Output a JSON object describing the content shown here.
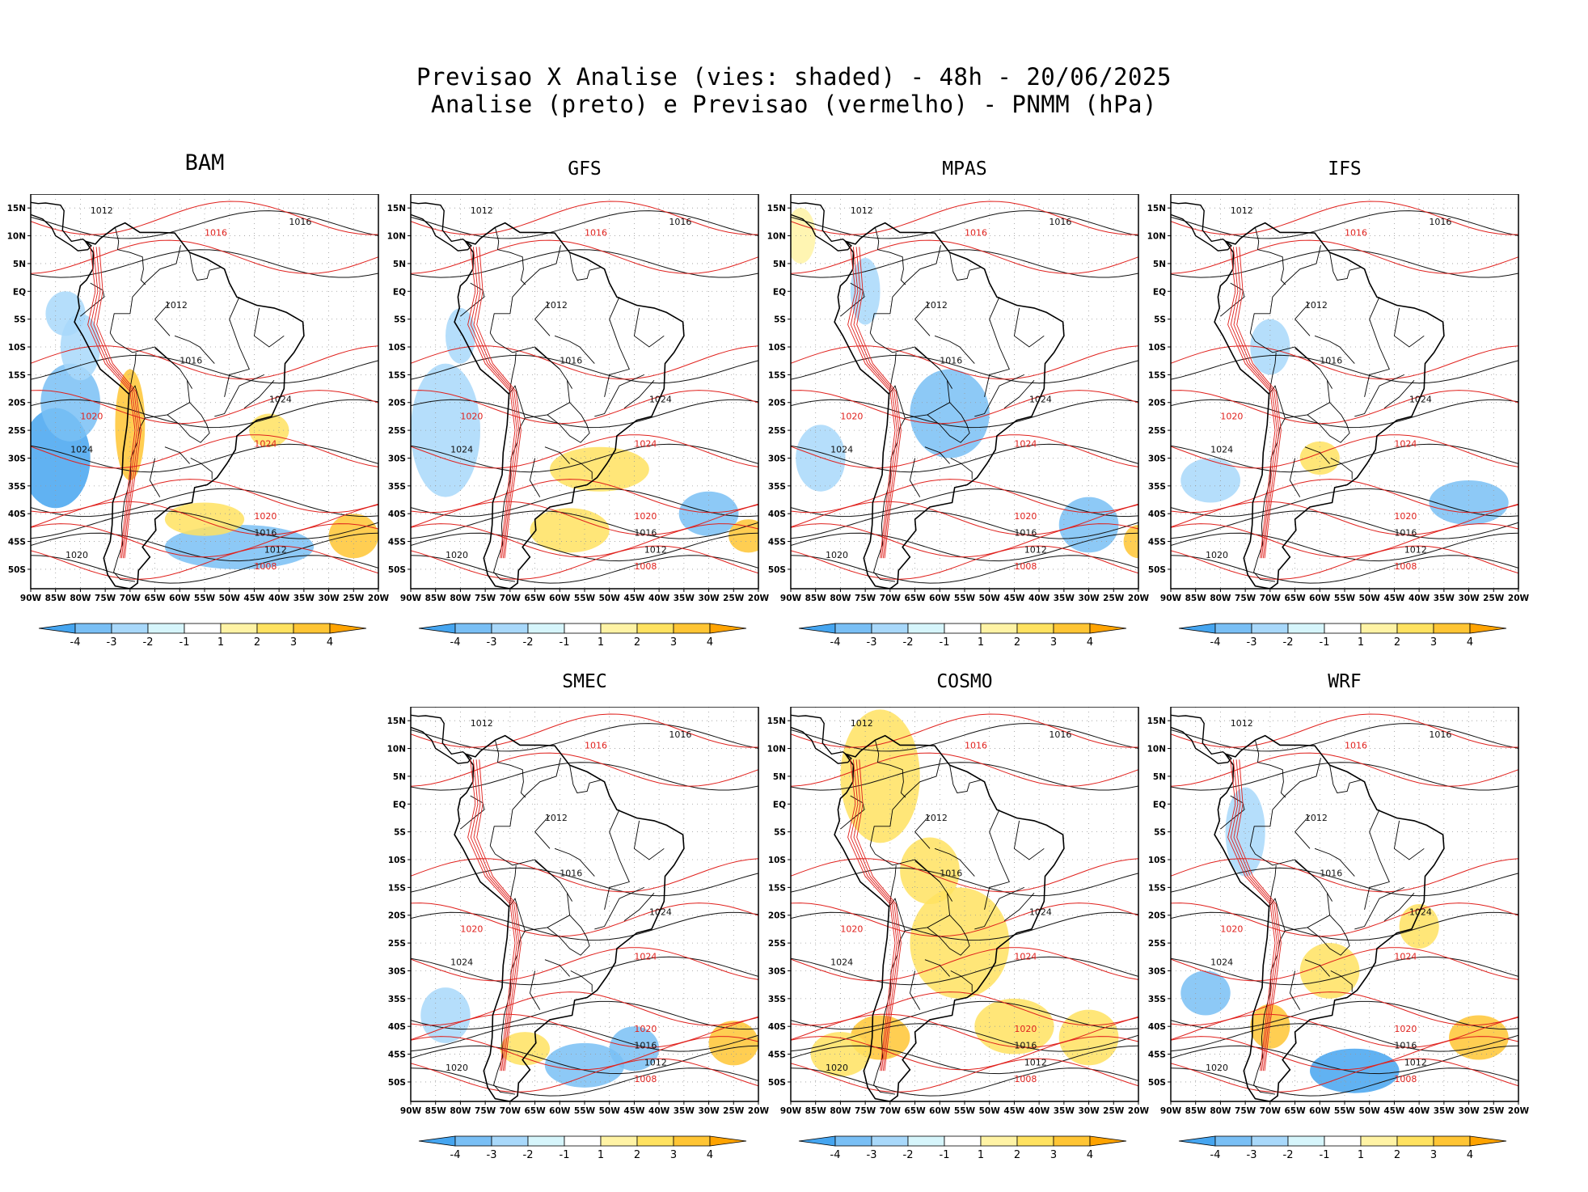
{
  "header": {
    "title_line1": "Previsao X Analise (vies: shaded) - 48h - 20/06/2025",
    "title_line2": "Analise (preto) e Previsao (vermelho) - PNMM (hPa)"
  },
  "chart_data": {
    "type": "map",
    "variable": "PNMM (hPa)",
    "lead_time": "48h",
    "date": "20/06/2025",
    "shading": "vies (bias)",
    "contours": {
      "analysis_color": "#000000",
      "forecast_color": "#e0211d"
    },
    "lat_labels": [
      "15N",
      "10N",
      "5N",
      "EQ",
      "5S",
      "10S",
      "15S",
      "20S",
      "25S",
      "30S",
      "35S",
      "40S",
      "45S",
      "50S"
    ],
    "lon_labels": [
      "90W",
      "85W",
      "80W",
      "75W",
      "70W",
      "65W",
      "60W",
      "55W",
      "50W",
      "45W",
      "40W",
      "35W",
      "30W",
      "25W",
      "20W"
    ],
    "colorbar": {
      "labels": [
        "-4",
        "-3",
        "-2",
        "-1",
        "1",
        "2",
        "3",
        "4"
      ],
      "colors": [
        "#45a5f0",
        "#79bff5",
        "#a8d8fa",
        "#d6f5fb",
        "#ffffff",
        "#fff3a5",
        "#ffe260",
        "#ffc534",
        "#ffa300"
      ]
    },
    "panels": [
      {
        "name": "BAM",
        "contour_labels": [
          "1012",
          "1016",
          "1016",
          "1016",
          "1020",
          "1024",
          "1024",
          "1020",
          "1016",
          "1012",
          "1008",
          "1020",
          "1012",
          "1024"
        ]
      },
      {
        "name": "GFS",
        "contour_labels": [
          "1012",
          "1016",
          "1016",
          "1016",
          "1020",
          "1024",
          "1024",
          "1020",
          "1016",
          "1012",
          "1008",
          "1020",
          "1012",
          "1024"
        ]
      },
      {
        "name": "MPAS",
        "contour_labels": [
          "1012",
          "1016",
          "1016",
          "1016",
          "1020",
          "1024",
          "1024",
          "1020",
          "1016",
          "1012",
          "1008",
          "1020",
          "1012",
          "1024"
        ]
      },
      {
        "name": "IFS",
        "contour_labels": [
          "1012",
          "1016",
          "1016",
          "1016",
          "1020",
          "1024",
          "1024",
          "1020",
          "1016",
          "1012",
          "1008",
          "1020",
          "1012",
          "1024"
        ]
      },
      {
        "name": "SMEC",
        "contour_labels": [
          "1012",
          "1016",
          "1016",
          "1016",
          "1020",
          "1024",
          "1024",
          "1020",
          "1016",
          "1012",
          "1008",
          "1020",
          "1012",
          "1024"
        ]
      },
      {
        "name": "COSMO",
        "contour_labels": [
          "1012",
          "1016",
          "1016",
          "1016",
          "1020",
          "1024",
          "1024",
          "1020",
          "1016",
          "1012",
          "1008",
          "1020",
          "1012",
          "1024"
        ]
      },
      {
        "name": "WRF",
        "contour_labels": [
          "1012",
          "1016",
          "1016",
          "1016",
          "1020",
          "1024",
          "1024",
          "1020",
          "1016",
          "1012",
          "1008",
          "1020",
          "1012",
          "1024"
        ]
      }
    ]
  }
}
